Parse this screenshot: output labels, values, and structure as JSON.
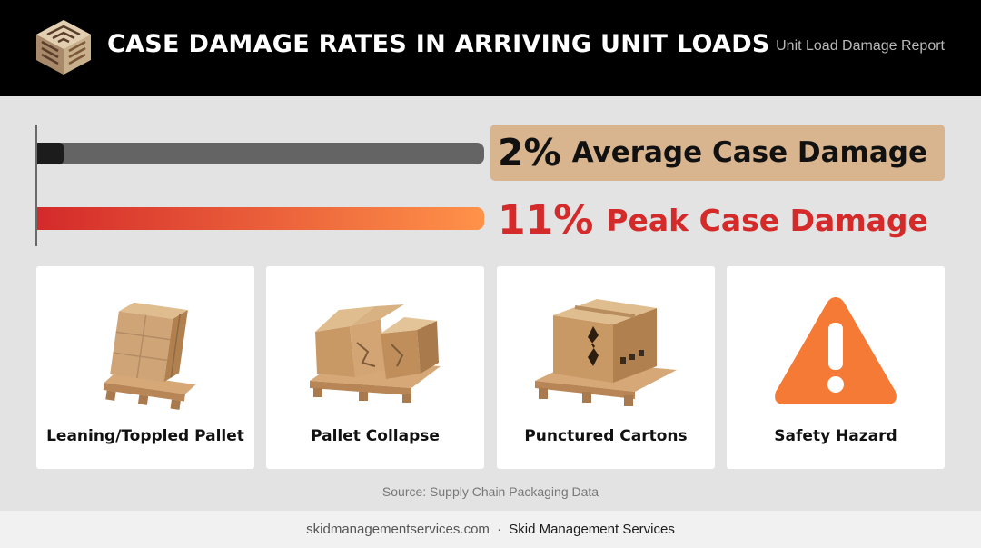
{
  "header": {
    "title": "CASE DAMAGE RATES IN ARRIVING UNIT LOADS",
    "report_label": "Unit Load Damage Report"
  },
  "stats": {
    "average": {
      "value": 2,
      "percent_label": "2%",
      "label": "Average Case Damage"
    },
    "peak": {
      "value": 11,
      "percent_label": "11%",
      "label": "Peak Case Damage"
    },
    "scale_max": 11
  },
  "cards": [
    {
      "label": "Leaning/Toppled Pallet",
      "icon": "leaning-pallet-icon"
    },
    {
      "label": "Pallet Collapse",
      "icon": "collapsed-pallet-icon"
    },
    {
      "label": "Punctured Cartons",
      "icon": "punctured-carton-icon"
    },
    {
      "label": "Safety Hazard",
      "icon": "warning-triangle-icon"
    }
  ],
  "source": "Source: Supply Chain Packaging Data",
  "footer": {
    "site": "skidmanagementservices.com",
    "separator": "·",
    "company": "Skid Management Services"
  },
  "colors": {
    "header_bg": "#000000",
    "average_box": "#d8b58e",
    "peak_red": "#d42a2a",
    "peak_orange": "#ff9249",
    "warning_orange": "#f47a35"
  }
}
